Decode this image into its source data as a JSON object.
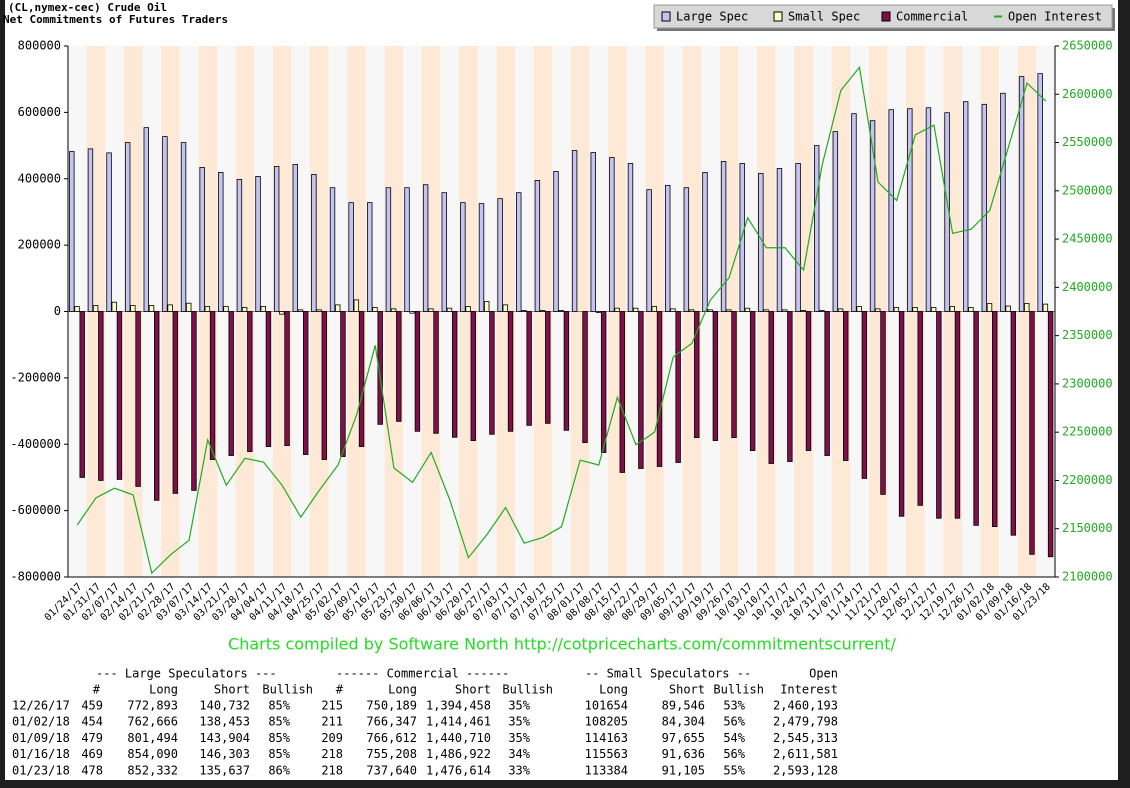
{
  "chart_data": {
    "type": "bar",
    "title": "(CL,nymex-cec) Crude Oil",
    "subtitle": "Net Commitments of Futures Traders",
    "note": "Charts compiled by Software North  http://cotpricecharts.com/commitmentscurrent/",
    "legend": "top-right",
    "categories": [
      "01/24/17",
      "01/31/17",
      "02/07/17",
      "02/14/17",
      "02/21/17",
      "02/28/17",
      "03/07/17",
      "03/14/17",
      "03/21/17",
      "03/28/17",
      "04/04/17",
      "04/11/17",
      "04/18/17",
      "04/25/17",
      "05/02/17",
      "05/09/17",
      "05/16/17",
      "05/23/17",
      "05/30/17",
      "06/06/17",
      "06/13/17",
      "06/20/17",
      "06/27/17",
      "07/03/17",
      "07/11/17",
      "07/18/17",
      "07/25/17",
      "08/01/17",
      "08/08/17",
      "08/15/17",
      "08/22/17",
      "08/29/17",
      "09/05/17",
      "09/12/17",
      "09/19/17",
      "09/26/17",
      "10/03/17",
      "10/10/17",
      "10/17/17",
      "10/24/17",
      "10/31/17",
      "11/07/17",
      "11/14/17",
      "11/21/17",
      "11/28/17",
      "12/05/17",
      "12/12/17",
      "12/19/17",
      "12/26/17",
      "01/02/18",
      "01/09/18",
      "01/16/18",
      "01/23/18"
    ],
    "series": [
      {
        "name": "Large Spec",
        "color": "#c4c4f4",
        "values": [
          482000,
          490000,
          478000,
          509000,
          554000,
          527000,
          509000,
          434000,
          419000,
          398000,
          407000,
          437000,
          443000,
          413000,
          373000,
          328000,
          328000,
          373000,
          373000,
          382000,
          358000,
          328000,
          325000,
          340000,
          358000,
          395000,
          422000,
          485000,
          479000,
          464000,
          446000,
          367000,
          380000,
          373000,
          419000,
          452000,
          446000,
          416000,
          431000,
          446000,
          500000,
          542000,
          596000,
          575000,
          608000,
          611000,
          614000,
          599000,
          632161,
          624213,
          657590,
          707787,
          716695
        ]
      },
      {
        "name": "Small Spec",
        "color": "#ffffc4",
        "values": [
          15000,
          18000,
          28000,
          18000,
          18000,
          20000,
          25000,
          15000,
          15000,
          12000,
          15000,
          -8000,
          5000,
          5000,
          20000,
          35000,
          12000,
          8000,
          -5000,
          8000,
          10000,
          15000,
          30000,
          20000,
          3000,
          3000,
          3000,
          0,
          -3000,
          10000,
          10000,
          15000,
          8000,
          5000,
          5000,
          5000,
          10000,
          5000,
          5000,
          3000,
          3000,
          8000,
          15000,
          8000,
          12000,
          12000,
          12000,
          15000,
          12108,
          23901,
          16508,
          23927,
          22279
        ]
      },
      {
        "name": "Commercial",
        "color": "#80104a",
        "values": [
          -500000,
          -509000,
          -506000,
          -527000,
          -569000,
          -548000,
          -539000,
          -446000,
          -434000,
          -422000,
          -407000,
          -404000,
          -431000,
          -446000,
          -437000,
          -407000,
          -340000,
          -331000,
          -361000,
          -367000,
          -379000,
          -389000,
          -370000,
          -361000,
          -343000,
          -337000,
          -358000,
          -395000,
          -425000,
          -485000,
          -473000,
          -467000,
          -455000,
          -380000,
          -389000,
          -380000,
          -419000,
          -458000,
          -452000,
          -419000,
          -434000,
          -449000,
          -503000,
          -551000,
          -617000,
          -584000,
          -623000,
          -623000,
          -644269,
          -648114,
          -674098,
          -731714,
          -738974
        ]
      },
      {
        "name": "Open Interest",
        "color": "#22aa22",
        "type": "line",
        "axis": "y2",
        "values": [
          2154000,
          2182000,
          2192000,
          2185000,
          2104000,
          2123000,
          2138000,
          2242000,
          2195000,
          2223000,
          2219000,
          2195000,
          2162000,
          2190000,
          2216000,
          2268000,
          2340000,
          2213000,
          2198000,
          2229000,
          2180000,
          2120000,
          2144000,
          2172000,
          2135000,
          2141000,
          2152000,
          2221000,
          2216000,
          2286000,
          2237000,
          2250000,
          2328000,
          2342000,
          2387000,
          2410000,
          2472000,
          2441000,
          2441000,
          2418000,
          2527000,
          2604000,
          2628000,
          2509000,
          2490000,
          2558000,
          2568000,
          2456000,
          2460193,
          2479798,
          2545313,
          2611581,
          2593128
        ]
      }
    ],
    "ylim": [
      -800000,
      800000
    ],
    "yticks": [
      -800000,
      -600000,
      -400000,
      -200000,
      0,
      200000,
      400000,
      600000,
      800000
    ],
    "y2lim": [
      2100000,
      2650000
    ],
    "y2ticks": [
      2100000,
      2150000,
      2200000,
      2250000,
      2300000,
      2350000,
      2400000,
      2450000,
      2500000,
      2550000,
      2600000,
      2650000
    ]
  },
  "table": {
    "groups": [
      "--- Large Speculators ---",
      "------ Commercial ------",
      "-- Small Speculators --",
      "Open"
    ],
    "columns": [
      "#",
      "Long",
      "Short",
      "Bullish",
      "#",
      "Long",
      "Short",
      "Bullish",
      "Long",
      "Short",
      "Bullish",
      "Interest"
    ],
    "rows": [
      [
        "12/26/17",
        "459",
        "772,893",
        "140,732",
        "85%",
        "215",
        "750,189",
        "1,394,458",
        "35%",
        "101654",
        "89,546",
        "53%",
        "2,460,193"
      ],
      [
        "01/02/18",
        "454",
        "762,666",
        "138,453",
        "85%",
        "211",
        "766,347",
        "1,414,461",
        "35%",
        "108205",
        "84,304",
        "56%",
        "2,479,798"
      ],
      [
        "01/09/18",
        "479",
        "801,494",
        "143,904",
        "85%",
        "209",
        "766,612",
        "1,440,710",
        "35%",
        "114163",
        "97,655",
        "54%",
        "2,545,313"
      ],
      [
        "01/16/18",
        "469",
        "854,090",
        "146,303",
        "85%",
        "218",
        "755,208",
        "1,486,922",
        "34%",
        "115563",
        "91,636",
        "56%",
        "2,611,581"
      ],
      [
        "01/23/18",
        "478",
        "852,332",
        "135,637",
        "86%",
        "218",
        "737,640",
        "1,476,614",
        "33%",
        "113384",
        "91,105",
        "55%",
        "2,593,128"
      ]
    ]
  }
}
